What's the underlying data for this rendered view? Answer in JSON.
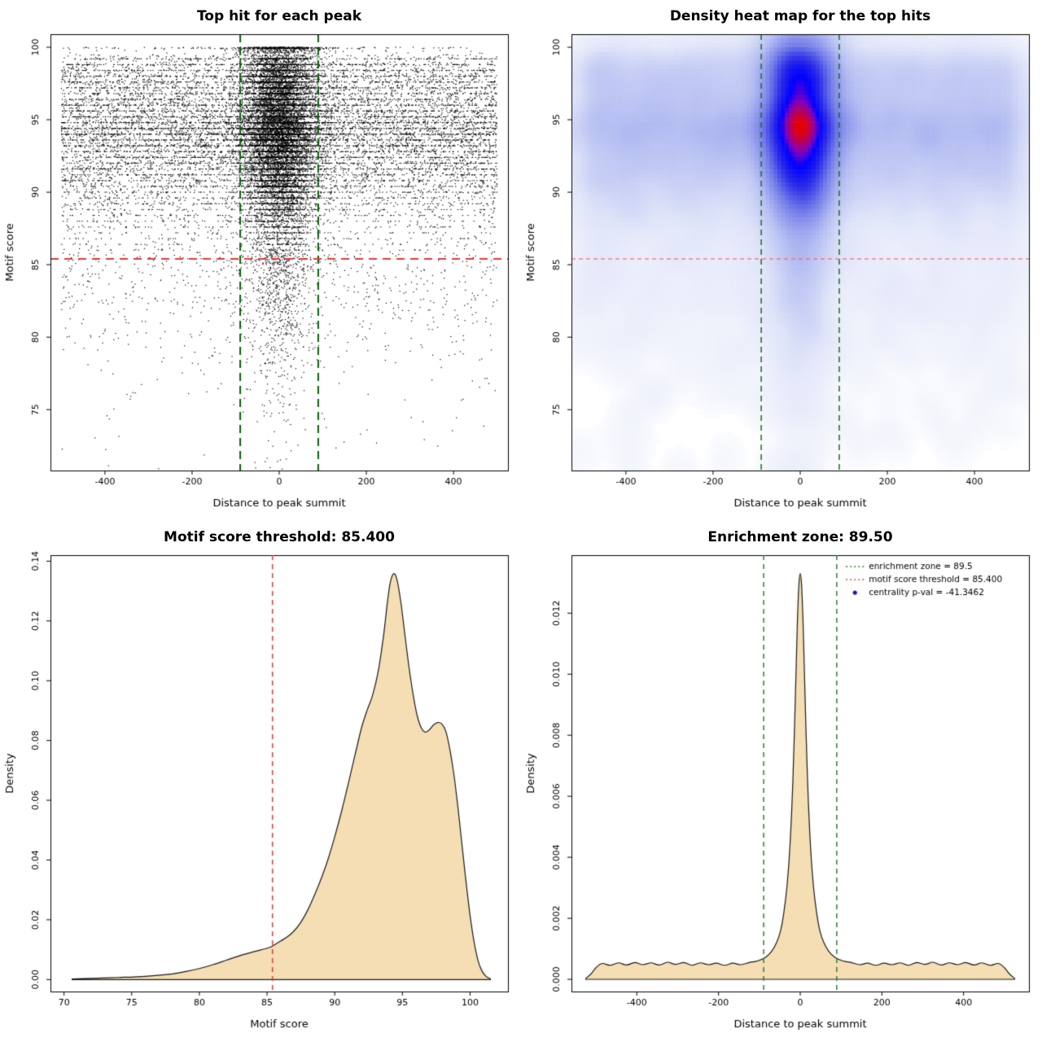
{
  "chart_data": [
    {
      "type": "scatter",
      "title": "Top hit for each peak",
      "xlabel": "Distance to peak summit",
      "ylabel": "Motif score",
      "xlim": [
        -525,
        525
      ],
      "ylim": [
        70.8,
        100.9
      ],
      "xticks": {
        "values": [
          -400,
          -200,
          0,
          200,
          400
        ],
        "labels": [
          "-400",
          "-200",
          "0",
          "200",
          "400"
        ]
      },
      "yticks": {
        "values": [
          75,
          80,
          85,
          90,
          95,
          100
        ],
        "labels": [
          "75",
          "80",
          "85",
          "90",
          "95",
          "100"
        ]
      },
      "hline": {
        "y": 85.4,
        "color": "#e63939",
        "width": 1.8,
        "dash": [
          10,
          7
        ]
      },
      "vlines": {
        "x": [
          -89.5,
          89.5
        ],
        "color": "#006400",
        "width": 2,
        "dash": [
          10,
          6
        ]
      },
      "points": {
        "seed": 7,
        "n_points": 26000,
        "center_fraction": 0.5,
        "center_sd": 40,
        "x_background_range": [
          -500,
          500
        ],
        "band_fraction": 0.5,
        "band_step": 0.4,
        "color": "#000000"
      }
    },
    {
      "type": "heatmap",
      "title": "Density heat map for the top hits",
      "xlabel": "Distance to peak summit",
      "ylabel": "Motif score",
      "xlim": [
        -525,
        525
      ],
      "ylim": [
        70.8,
        100.9
      ],
      "xticks": {
        "values": [
          -400,
          -200,
          0,
          200,
          400
        ],
        "labels": [
          "-400",
          "-200",
          "0",
          "200",
          "400"
        ]
      },
      "yticks": {
        "values": [
          75,
          80,
          85,
          90,
          95,
          100
        ],
        "labels": [
          "75",
          "80",
          "85",
          "90",
          "95",
          "100"
        ]
      },
      "hline": {
        "y": 85.4,
        "color": "#ff4d4d",
        "width": 1,
        "dash": [
          5,
          4
        ]
      },
      "vlines": {
        "x": [
          -89.5,
          89.5
        ],
        "color": "#1b6b1b",
        "width": 1.5,
        "dash": [
          7,
          5
        ]
      },
      "grid": {
        "nx": 120,
        "ny": 100,
        "blur_radius": 2,
        "blur_passes": 3,
        "gamma": 0.45
      },
      "color_ramp": [
        [
          0.0,
          "#ffffff"
        ],
        [
          0.05,
          "#f3f5fc"
        ],
        [
          0.18,
          "#dfe4f9"
        ],
        [
          0.35,
          "#b6bff2"
        ],
        [
          0.55,
          "#727ce8"
        ],
        [
          0.72,
          "#2a2ae8"
        ],
        [
          0.84,
          "#0000ff"
        ],
        [
          0.9,
          "#8000c0"
        ],
        [
          1.0,
          "#e60000"
        ]
      ]
    },
    {
      "type": "area",
      "title": "Motif score threshold: 85.400",
      "xlabel": "Motif score",
      "ylabel": "Density",
      "xlim": [
        69,
        102.8
      ],
      "ylim": [
        -0.004,
        0.142
      ],
      "xticks": {
        "values": [
          70,
          75,
          80,
          85,
          90,
          95,
          100
        ],
        "labels": [
          "70",
          "75",
          "80",
          "85",
          "90",
          "95",
          "100"
        ]
      },
      "yticks": {
        "values": [
          0,
          0.02,
          0.04,
          0.06,
          0.08,
          0.1,
          0.12,
          0.14
        ],
        "labels": [
          "0.00",
          "0.02",
          "0.04",
          "0.06",
          "0.08",
          "0.10",
          "0.12",
          "0.14"
        ]
      },
      "fill": "#f5deb3",
      "line": "#1a1a1a",
      "vlines": {
        "x": [
          85.4
        ],
        "color": "#e63939",
        "width": 1.5,
        "dash": [
          6,
          5
        ]
      },
      "threshold_value": "85.400",
      "curve": [
        [
          70.6,
          0.0002
        ],
        [
          72,
          0.0004
        ],
        [
          74,
          0.0007
        ],
        [
          76,
          0.0011
        ],
        [
          78,
          0.0019
        ],
        [
          79,
          0.0027
        ],
        [
          80,
          0.0037
        ],
        [
          81,
          0.005
        ],
        [
          82,
          0.0065
        ],
        [
          83,
          0.008
        ],
        [
          84,
          0.0093
        ],
        [
          85,
          0.0105
        ],
        [
          85.4,
          0.0112
        ],
        [
          86,
          0.0129
        ],
        [
          86.5,
          0.0143
        ],
        [
          87,
          0.0163
        ],
        [
          87.5,
          0.0192
        ],
        [
          88,
          0.0232
        ],
        [
          88.5,
          0.0282
        ],
        [
          89,
          0.0338
        ],
        [
          89.5,
          0.0402
        ],
        [
          90,
          0.0478
        ],
        [
          90.5,
          0.0562
        ],
        [
          91,
          0.0655
        ],
        [
          91.5,
          0.0752
        ],
        [
          92,
          0.0846
        ],
        [
          92.4,
          0.0902
        ],
        [
          92.8,
          0.0952
        ],
        [
          93.2,
          0.1028
        ],
        [
          93.6,
          0.1148
        ],
        [
          93.9,
          0.1265
        ],
        [
          94.1,
          0.1328
        ],
        [
          94.35,
          0.1358
        ],
        [
          94.6,
          0.1338
        ],
        [
          94.9,
          0.1258
        ],
        [
          95.2,
          0.1148
        ],
        [
          95.5,
          0.1042
        ],
        [
          95.8,
          0.0952
        ],
        [
          96.1,
          0.0882
        ],
        [
          96.4,
          0.0842
        ],
        [
          96.7,
          0.0828
        ],
        [
          97,
          0.0836
        ],
        [
          97.3,
          0.0852
        ],
        [
          97.6,
          0.086
        ],
        [
          97.9,
          0.0856
        ],
        [
          98.2,
          0.0832
        ],
        [
          98.5,
          0.0772
        ],
        [
          98.8,
          0.0688
        ],
        [
          99.1,
          0.0578
        ],
        [
          99.4,
          0.0452
        ],
        [
          99.7,
          0.0328
        ],
        [
          100,
          0.0215
        ],
        [
          100.3,
          0.0125
        ],
        [
          100.6,
          0.0062
        ],
        [
          100.9,
          0.0027
        ],
        [
          101.2,
          0.001
        ],
        [
          101.5,
          0.0003
        ]
      ]
    },
    {
      "type": "area",
      "title": "Enrichment zone: 89.50",
      "xlabel": "Distance to peak summit",
      "ylabel": "Density",
      "xlim": [
        -560,
        560
      ],
      "ylim": [
        -0.0004,
        0.0139
      ],
      "xticks": {
        "values": [
          -400,
          -200,
          0,
          200,
          400
        ],
        "labels": [
          "-400",
          "-200",
          "0",
          "200",
          "400"
        ]
      },
      "yticks": {
        "values": [
          0,
          0.002,
          0.004,
          0.006,
          0.008,
          0.01,
          0.012
        ],
        "labels": [
          "0.000",
          "0.002",
          "0.004",
          "0.006",
          "0.008",
          "0.010",
          "0.012"
        ]
      },
      "fill": "#f5deb3",
      "line": "#1a1a1a",
      "vlines": {
        "x": [
          -89.5,
          89.5
        ],
        "color": "#2e7d32",
        "width": 1.5,
        "dash": [
          6,
          5
        ]
      },
      "zone_value": "89.50",
      "legend": {
        "items": [
          {
            "label": "enrichment zone = 89.5",
            "color": "#2e7d32",
            "type": "line"
          },
          {
            "label": "motif score threshold = 85.400",
            "color": "#e63939",
            "type": "line"
          },
          {
            "label": "centrality p-val = -41.3462",
            "color": "#1515c8",
            "type": "point"
          }
        ]
      },
      "curve": [
        [
          -525,
          3e-05
        ],
        [
          -512,
          0.00018
        ],
        [
          -500,
          0.00038
        ],
        [
          -485,
          0.00052
        ],
        [
          -465,
          0.00046
        ],
        [
          -445,
          0.00054
        ],
        [
          -425,
          0.00047
        ],
        [
          -405,
          0.00055
        ],
        [
          -385,
          0.00048
        ],
        [
          -365,
          0.00054
        ],
        [
          -345,
          0.00047
        ],
        [
          -325,
          0.00056
        ],
        [
          -305,
          0.00049
        ],
        [
          -285,
          0.00055
        ],
        [
          -265,
          0.00046
        ],
        [
          -245,
          0.00054
        ],
        [
          -225,
          0.00048
        ],
        [
          -205,
          0.00053
        ],
        [
          -185,
          0.00046
        ],
        [
          -165,
          0.00053
        ],
        [
          -145,
          0.00048
        ],
        [
          -125,
          0.00055
        ],
        [
          -105,
          0.0006
        ],
        [
          -85,
          0.00072
        ],
        [
          -70,
          0.00092
        ],
        [
          -58,
          0.0012
        ],
        [
          -48,
          0.0016
        ],
        [
          -40,
          0.0022
        ],
        [
          -32,
          0.0031
        ],
        [
          -25,
          0.0044
        ],
        [
          -18,
          0.0065
        ],
        [
          -12,
          0.0092
        ],
        [
          -7,
          0.0117
        ],
        [
          -3,
          0.013
        ],
        [
          0,
          0.0133
        ],
        [
          3,
          0.013
        ],
        [
          7,
          0.0117
        ],
        [
          12,
          0.0092
        ],
        [
          18,
          0.0065
        ],
        [
          25,
          0.0044
        ],
        [
          32,
          0.0031
        ],
        [
          40,
          0.0022
        ],
        [
          48,
          0.0016
        ],
        [
          58,
          0.0012
        ],
        [
          70,
          0.00092
        ],
        [
          85,
          0.00072
        ],
        [
          105,
          0.0006
        ],
        [
          125,
          0.00055
        ],
        [
          145,
          0.00048
        ],
        [
          165,
          0.00053
        ],
        [
          185,
          0.00046
        ],
        [
          205,
          0.00053
        ],
        [
          225,
          0.00048
        ],
        [
          245,
          0.00054
        ],
        [
          265,
          0.00046
        ],
        [
          285,
          0.00055
        ],
        [
          305,
          0.00049
        ],
        [
          325,
          0.00056
        ],
        [
          345,
          0.00047
        ],
        [
          365,
          0.00054
        ],
        [
          385,
          0.00048
        ],
        [
          405,
          0.00055
        ],
        [
          425,
          0.00047
        ],
        [
          445,
          0.00054
        ],
        [
          465,
          0.00046
        ],
        [
          485,
          0.00052
        ],
        [
          500,
          0.00038
        ],
        [
          512,
          0.00018
        ],
        [
          525,
          3e-05
        ]
      ]
    }
  ]
}
